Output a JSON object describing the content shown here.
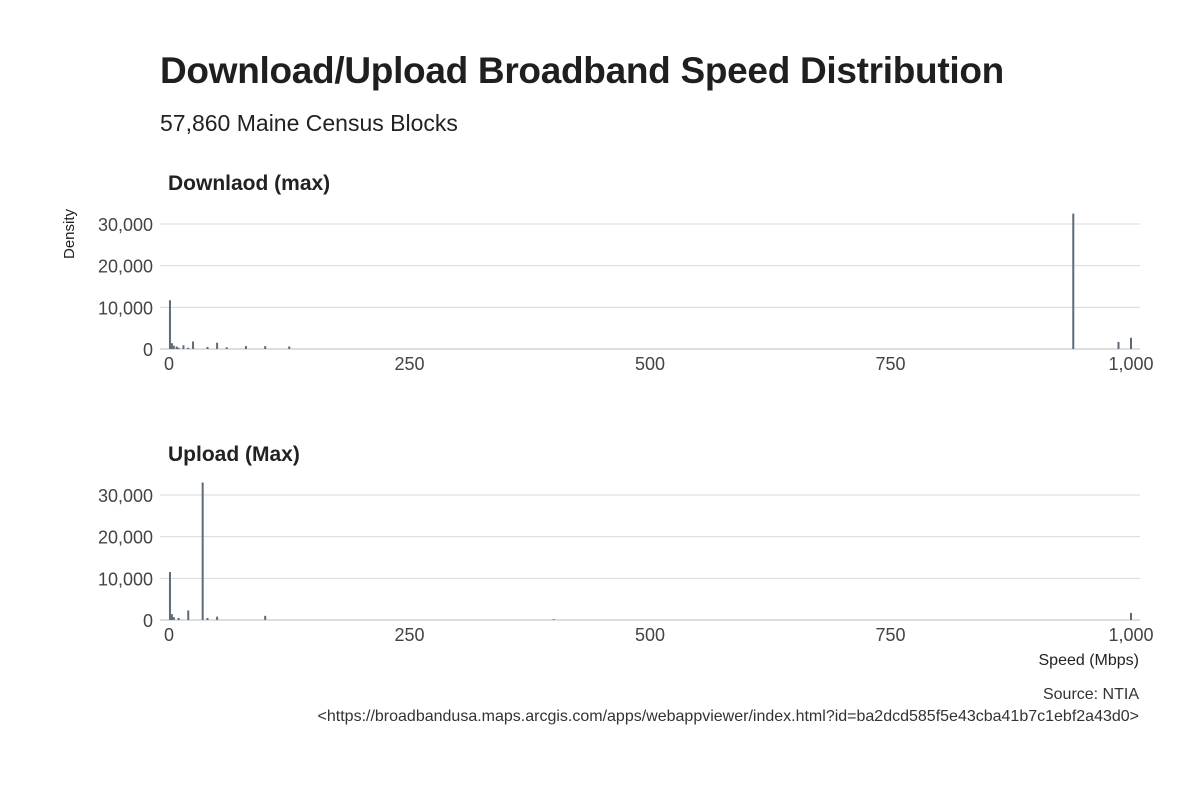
{
  "chart": {
    "title": "Download/Upload Broadband Speed Distribution",
    "subtitle": "57,860 Maine Census Blocks",
    "caption_line1": "Source: NTIA",
    "caption_line2": "<https://broadbandusa.maps.arcgis.com/apps/webappviewer/index.html?id=ba2dcd585f5e43cba41b7c1ebf2a43d0>"
  },
  "chart_data": {
    "type": "bar",
    "title": "Download/Upload Broadband Speed Distribution",
    "subtitle": "57,860 Maine Census Blocks",
    "ylabel": "Density",
    "xlabel": "Speed (Mbps)",
    "xlim": [
      0,
      1000
    ],
    "ylim": [
      0,
      32500
    ],
    "x_ticks": [
      0,
      250,
      500,
      750,
      1000
    ],
    "x_tick_labels": [
      "0",
      "250",
      "500",
      "750",
      "1,000"
    ],
    "y_ticks": [
      0,
      10000,
      20000,
      30000
    ],
    "y_tick_labels": [
      "0",
      "10,000",
      "20,000",
      "30,000"
    ],
    "grid": true,
    "bar_color": "#5d6b78",
    "panels": [
      {
        "name": "Downlaod (max)",
        "bars": [
          {
            "x": 1,
            "y": 11700
          },
          {
            "x": 3,
            "y": 1400
          },
          {
            "x": 5,
            "y": 800
          },
          {
            "x": 8,
            "y": 600
          },
          {
            "x": 10,
            "y": 300
          },
          {
            "x": 15,
            "y": 900
          },
          {
            "x": 20,
            "y": 300
          },
          {
            "x": 25,
            "y": 1800
          },
          {
            "x": 40,
            "y": 500
          },
          {
            "x": 50,
            "y": 1500
          },
          {
            "x": 60,
            "y": 400
          },
          {
            "x": 80,
            "y": 700
          },
          {
            "x": 100,
            "y": 700
          },
          {
            "x": 125,
            "y": 600
          },
          {
            "x": 940,
            "y": 32500
          },
          {
            "x": 987,
            "y": 1700
          },
          {
            "x": 1000,
            "y": 2700
          }
        ]
      },
      {
        "name": "Upload (Max)",
        "bars": [
          {
            "x": 1,
            "y": 11500
          },
          {
            "x": 3,
            "y": 1400
          },
          {
            "x": 5,
            "y": 700
          },
          {
            "x": 10,
            "y": 500
          },
          {
            "x": 20,
            "y": 2300
          },
          {
            "x": 35,
            "y": 33000
          },
          {
            "x": 40,
            "y": 500
          },
          {
            "x": 50,
            "y": 800
          },
          {
            "x": 100,
            "y": 1000
          },
          {
            "x": 400,
            "y": 200
          },
          {
            "x": 1000,
            "y": 1700
          }
        ]
      }
    ]
  }
}
